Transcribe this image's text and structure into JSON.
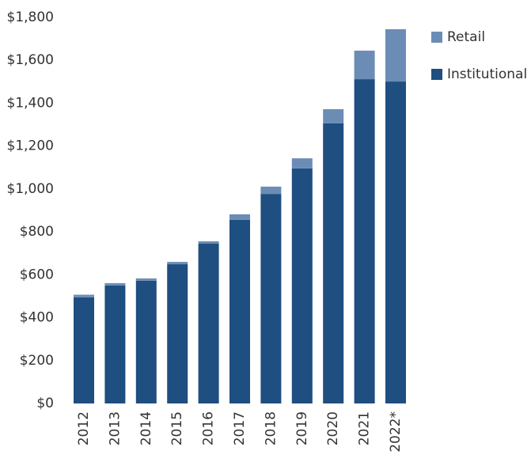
{
  "chart_data": {
    "type": "stacked_bar",
    "categories": [
      "2012",
      "2013",
      "2014",
      "2015",
      "2016",
      "2017",
      "2018",
      "2019",
      "2020",
      "2021",
      "2022*"
    ],
    "series": [
      {
        "name": "Institutional",
        "color": "#1f4e80",
        "values": [
          495,
          550,
          572,
          649,
          745,
          856,
          977,
          1096,
          1306,
          1512,
          1501
        ]
      },
      {
        "name": "Retail",
        "color": "#6b8db5",
        "values": [
          12,
          11,
          11,
          11,
          11,
          26,
          34,
          47,
          66,
          133,
          244
        ]
      }
    ],
    "ylim": [
      0,
      1800
    ],
    "yticks": [
      {
        "value": 0,
        "label": "$0"
      },
      {
        "value": 200,
        "label": "$200"
      },
      {
        "value": 400,
        "label": "$400"
      },
      {
        "value": 600,
        "label": "$600"
      },
      {
        "value": 800,
        "label": "$800"
      },
      {
        "value": 1000,
        "label": "$1,000"
      },
      {
        "value": 1200,
        "label": "$1,200"
      },
      {
        "value": 1400,
        "label": "$1,400"
      },
      {
        "value": 1600,
        "label": "$1,600"
      },
      {
        "value": 1800,
        "label": "$1,800"
      }
    ],
    "legend": "top-right"
  }
}
